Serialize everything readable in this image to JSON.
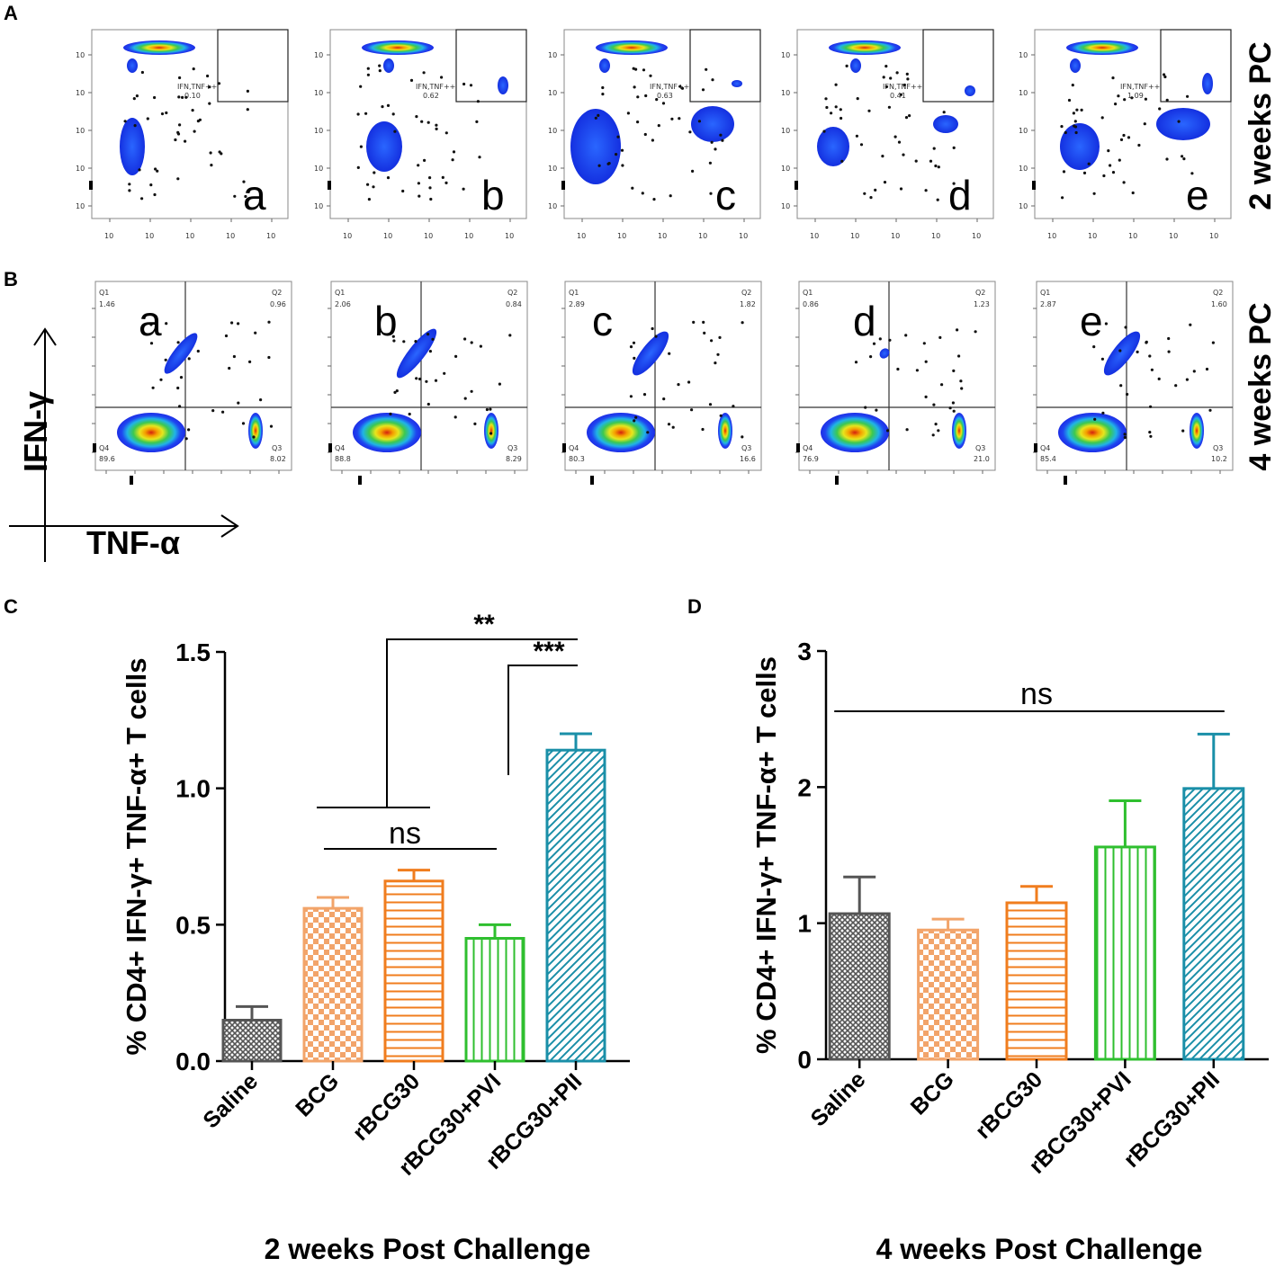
{
  "figure": {
    "panel_labels": [
      "A",
      "B",
      "C",
      "D"
    ],
    "row_labels": {
      "A": "2 weeks PC",
      "B": "4 weeks PC"
    },
    "flow_axes": {
      "x": "TNF-α",
      "y": "IFN-γ"
    },
    "plot_letters": [
      "a",
      "b",
      "c",
      "d",
      "e"
    ],
    "flow_A": {
      "gate_name": "IFN,TNF++",
      "values": [
        "0.10",
        "0.62",
        "0.63",
        "0.41",
        "1.09"
      ]
    },
    "flow_B": {
      "quadrant_names": [
        "Q1",
        "Q2",
        "Q3",
        "Q4"
      ],
      "q1": [
        "1.46",
        "2.06",
        "2.89",
        "0.86",
        "2.87"
      ],
      "q2": [
        "0.96",
        "0.84",
        "1.82",
        "1.23",
        "1.60"
      ],
      "q3": [
        "8.02",
        "8.29",
        "16.6",
        "21.0",
        "10.2"
      ],
      "q4": [
        "89.6",
        "88.8",
        "80.3",
        "76.9",
        "85.4"
      ]
    }
  },
  "chart_data": [
    {
      "type": "bar",
      "panel": "C",
      "categories": [
        "Saline",
        "BCG",
        "rBCG30",
        "rBCG30+PVI",
        "rBCG30+PII"
      ],
      "values": [
        0.15,
        0.56,
        0.66,
        0.45,
        1.14
      ],
      "errors": [
        0.05,
        0.04,
        0.04,
        0.05,
        0.06
      ],
      "ylabel": "% CD4+ IFN-γ+ TNF-α+ T cells",
      "xlabel": "2 weeks Post Challenge",
      "ylim": [
        0,
        1.5
      ],
      "yticks": [
        0,
        0.5,
        1.0,
        1.5
      ],
      "ytick_labels": [
        "0.0",
        "0.5",
        "1.0",
        "1.5"
      ],
      "colors": [
        "#555555",
        "#f2a46a",
        "#f07d1e",
        "#2fbf2f",
        "#1a8fa8"
      ],
      "patterns": [
        "crosshatch",
        "checker",
        "horizontal",
        "vertical",
        "diagonal"
      ],
      "significance": [
        {
          "label": "**",
          "from": "BCG-rBCG30 group",
          "to": "rBCG30+PII"
        },
        {
          "label": "***",
          "from": "rBCG30+PVI",
          "to": "rBCG30+PII"
        },
        {
          "label": "ns",
          "from": "BCG",
          "to": "rBCG30+PVI"
        }
      ]
    },
    {
      "type": "bar",
      "panel": "D",
      "categories": [
        "Saline",
        "BCG",
        "rBCG30",
        "rBCG30+PVI",
        "rBCG30+PII"
      ],
      "values": [
        1.07,
        0.95,
        1.15,
        1.56,
        1.99
      ],
      "errors": [
        0.27,
        0.08,
        0.12,
        0.34,
        0.4
      ],
      "ylabel": "% CD4+ IFN-γ+ TNF-α+ T cells",
      "xlabel": "4 weeks Post Challenge",
      "ylim": [
        0,
        3
      ],
      "yticks": [
        0,
        1,
        2,
        3
      ],
      "ytick_labels": [
        "0",
        "1",
        "2",
        "3"
      ],
      "colors": [
        "#555555",
        "#f2a46a",
        "#f07d1e",
        "#2fbf2f",
        "#1a8fa8"
      ],
      "patterns": [
        "crosshatch",
        "checker",
        "horizontal",
        "vertical",
        "diagonal"
      ],
      "significance": [
        {
          "label": "ns",
          "from": "Saline",
          "to": "rBCG30+PII"
        }
      ]
    }
  ]
}
